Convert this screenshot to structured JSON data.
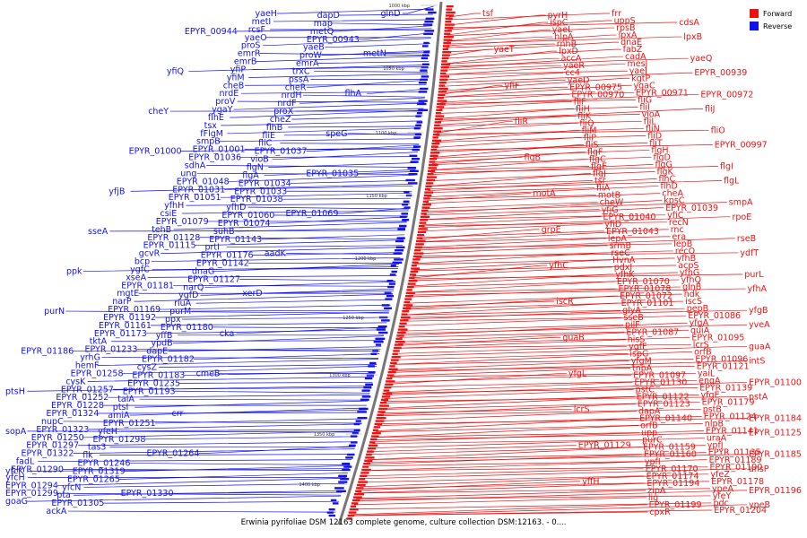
{
  "caption": "Erwinia pyrifoliae DSM 12163 complete genome, culture collection DSM:12163. - 0....",
  "legend": [
    {
      "name": "Forward",
      "color": "#ee1111"
    },
    {
      "name": "Reverse",
      "color": "#1111ee"
    }
  ],
  "strands": {
    "forward_color": "#ee1111",
    "reverse_color": "#1111ee",
    "backbone_color": "#777777"
  },
  "scale_labels": [
    "1000 kbp",
    "1050 kbp",
    "1100 kbp",
    "1150 kbp",
    "1200 kbp",
    "1250 kbp",
    "1300 kbp",
    "1350 kbp",
    "1400 kbp"
  ],
  "reverse_labels": [
    "glnD",
    "dapD",
    "yaeH",
    "map",
    "metI",
    "metQ",
    "rcsF",
    "EPYR_00944",
    "EPYR_00943",
    "yaeO",
    "yaeB",
    "proS",
    "metN",
    "proW",
    "emrR",
    "emrA",
    "emrB",
    "trxC",
    "yfiP",
    "yfiQ",
    "pssA",
    "yfiM",
    "cheR",
    "cheB",
    "flhA",
    "nrdH",
    "nrdE",
    "nrdF",
    "proV",
    "proX",
    "ygaY",
    "cheY",
    "cheZ",
    "flhE",
    "flhB",
    "tsx",
    "speG",
    "fliE",
    "fFlgM",
    "fliC",
    "smpB",
    "EPYR_01037",
    "EPYR_01001",
    "EPYR_01000",
    "vioB",
    "EPYR_01036",
    "flgN",
    "sdhA",
    "EPYR_01035",
    "flgA",
    "ung",
    "EPYR_01034",
    "EPYR_01048",
    "EPYR_01033",
    "EPYR_01031",
    "yfjB",
    "EPYR_01038",
    "EPYR_01051",
    "yfhD",
    "yfhH",
    "EPYR_01069",
    "EPYR_01060",
    "csiE",
    "EPYR_01074",
    "EPYR_01079",
    "suhB",
    "tehB",
    "sseA",
    "EPYR_01143",
    "EPYR_01128",
    "prtI",
    "EPYR_01115",
    "aadK",
    "EPYR_01176",
    "gcvR",
    "EPYR_01142",
    "bcp",
    "dnaG",
    "ygfC",
    "ppk",
    "EPYR_01127",
    "xseA",
    "narQ",
    "EPYR_01181",
    "xerD",
    "ygfD",
    "mgtE",
    "rluA",
    "narP",
    "purM",
    "EPYR_01169",
    "purN",
    "ppx",
    "EPYR_01192",
    "EPYR_01180",
    "EPYR_01161",
    "cka",
    "yffB",
    "EPYR_01173",
    "ypdB",
    "tktA",
    "dapE",
    "EPYR_01233",
    "EPYR_01186",
    "EPYR_01182",
    "yrhG",
    "cysZ",
    "hemF",
    "cmeB",
    "EPYR_01183",
    "EPYR_01258",
    "EPYR_01235",
    "cysK",
    "EPYR_01193",
    "EPYR_01257",
    "ptsH",
    "talA",
    "EPYR_01252",
    "ptsI",
    "EPYR_01228",
    "crr",
    "amiA",
    "EPYR_01324",
    "EPYR_01251",
    "nupC",
    "yfeH",
    "EPYR_01323",
    "sopA",
    "EPYR_01298",
    "EPYR_01250",
    "tas3",
    "EPYR_01297",
    "EPYR_01264",
    "flk",
    "EPYR_01322",
    "EPYR_01246",
    "fadL",
    "EPYR_01319",
    "EPYR_01290",
    "yfcK",
    "EPYR_01265",
    "yfcH",
    "yfcN",
    "EPYR_01294",
    "EPYR_01330",
    "pta",
    "EPYR_01299",
    "EPYR_01305",
    "goaG",
    "ackA"
  ],
  "forward_labels": [
    "tsf",
    "pyrH",
    "frr",
    "ispC",
    "uppS",
    "cdsA",
    "yaeL",
    "rpsB",
    "hlpA",
    "lpxA",
    "lpxB",
    "rnhB",
    "dnaE",
    "yaeT",
    "lpxD",
    "fabZ",
    "accA",
    "cadA",
    "yaeQ",
    "yaeR",
    "mesJ",
    "cc4",
    "yaeJ",
    "EPYR_00939",
    "yaeD",
    "kgtP",
    "yfiF",
    "EPYR_00975",
    "ygaC",
    "EPYR_00970",
    "EPYR_00971",
    "EPYR_00972",
    "fliF",
    "fliG",
    "fliH",
    "fliI",
    "fliJ",
    "fliK",
    "vioA",
    "fliR",
    "fliQ",
    "fliL",
    "fliM",
    "fliN",
    "fliO",
    "fliP",
    "fliD",
    "fliS",
    "fliT",
    "EPYR_00997",
    "flgF",
    "flgH",
    "flgB",
    "flgC",
    "flgD",
    "flgE",
    "flgG",
    "flgI",
    "flgJ",
    "flgK",
    "tsr",
    "flhC",
    "flgL",
    "fliA",
    "flhD",
    "motA",
    "motB",
    "cheA",
    "cheW",
    "kpsC",
    "smpA",
    "yfjG",
    "EPYR_01039",
    "EPYR_01040",
    "yfiC",
    "rpoE",
    "yfiD",
    "recN",
    "grpE",
    "EPYR_01043",
    "rnc",
    "lepA",
    "era",
    "rseB",
    "srmB",
    "lepB",
    "rseC",
    "recO",
    "ydfT",
    "HvnA",
    "yfhB",
    "yfhC",
    "pdxJ",
    "acpS",
    "yfhK",
    "yfhG",
    "purL",
    "EPYR_01070",
    "yfhQ",
    "EPYR_01078",
    "glnB",
    "yfhA",
    "EPYR_01072",
    "ndk",
    "iscR",
    "EPYR_01101",
    "iscS",
    "glyA",
    "pepB",
    "yfgB",
    "sseB",
    "EPYR_01086",
    "pilF",
    "yfgA",
    "yveA",
    "EPYR_01087",
    "quiA",
    "guaB",
    "hisS",
    "EPYR_01095",
    "ygfF",
    "lcrS",
    "guaA",
    "ispG",
    "orfB",
    "yfgM",
    "EPYR_01096",
    "intS",
    "tnpA",
    "EPYR_01121",
    "yfgL",
    "EPYR_01097",
    "yaiL",
    "EPYR_01130",
    "engA",
    "EPYR_01100",
    "pstC",
    "EPYR_01139",
    "EPYR_01122",
    "yfgE",
    "pstA",
    "EPYR_01123",
    "EPYR_01179",
    "lcrS",
    "dapA",
    "pstB",
    "EPYR_01140",
    "EPYR_01124",
    "EPYR_01184",
    "orfB",
    "nlpB",
    "upp",
    "EPYR_01141",
    "EPYR_01125",
    "purC",
    "uraA",
    "EPYR_01129",
    "EPYR_01159",
    "ypfJ",
    "EPYR_01160",
    "EPYR_01135",
    "EPYR_01185",
    "ypfI",
    "EPYR_01189",
    "EPYR_01170",
    "EPYR_01190",
    "ansP",
    "EPYR_01174",
    "yfeZ",
    "yffH",
    "EPYR_01194",
    "EPYR_01178",
    "zipA",
    "ypeA",
    "EPYR_01196",
    "lig",
    "yfeY",
    "EPYR_01199",
    "pdc",
    "ypeB",
    "cpxR",
    "EPYR_01204"
  ]
}
